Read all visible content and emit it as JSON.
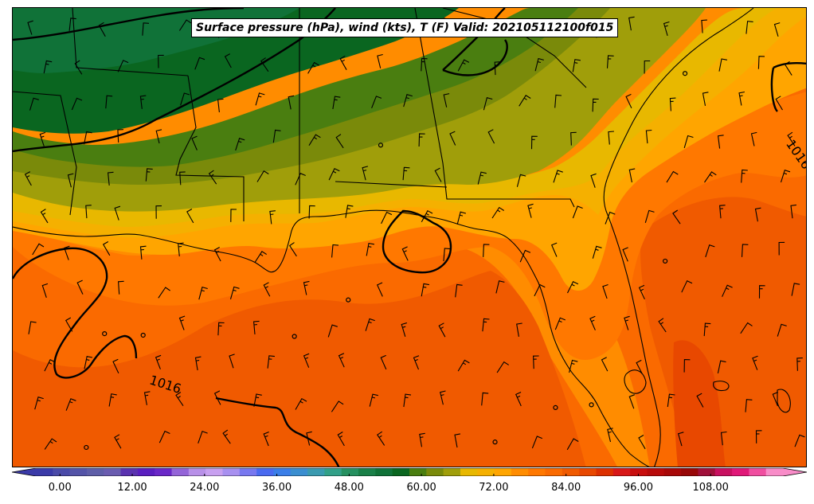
{
  "title": "Surface pressure (hPa), wind (kts), T (F) Valid: 202105112100f015",
  "isobar_labels": [
    "1016",
    "1016"
  ],
  "colorbar": {
    "min": -4,
    "max": 120,
    "extend": "both",
    "ticks": [
      "0.00",
      "12.00",
      "24.00",
      "36.00",
      "48.00",
      "60.00",
      "72.00",
      "84.00",
      "96.00",
      "108.00"
    ],
    "tick_values": [
      0,
      12,
      24,
      36,
      48,
      60,
      72,
      84,
      96,
      108
    ],
    "colors": [
      "#3a3aa8",
      "#4a4aa8",
      "#5454a8",
      "#5e5ea8",
      "#6a5cb0",
      "#5a32b0",
      "#5a1ec0",
      "#6a28c8",
      "#9464d8",
      "#b890e8",
      "#c8a0f0",
      "#a890f0",
      "#7878f0",
      "#4a6af0",
      "#3a7ee8",
      "#3a8ed0",
      "#3a9ab0",
      "#32a088",
      "#269060",
      "#1a8048",
      "#107238",
      "#0a6620",
      "#4a7e10",
      "#7a8a0a",
      "#a09e0a",
      "#e8b800",
      "#f5b000",
      "#ffa500",
      "#ff8c00",
      "#ff7800",
      "#fa6a00",
      "#f05a00",
      "#e84800",
      "#dc3000",
      "#d81818",
      "#c80e0e",
      "#b80a0a",
      "#a80808",
      "#980808",
      "#a0103a",
      "#c81060",
      "#e01878",
      "#f04ea0",
      "#f88cc8"
    ]
  },
  "temperature_colors": {
    "t58": "#107238",
    "t60": "#0a6620",
    "t62": "#4a7e10",
    "t64": "#7a8a0a",
    "t66": "#a09e0a",
    "t68": "#e8b800",
    "t70": "#f5b000",
    "t72": "#ffa500",
    "t74": "#ff8c00",
    "t76": "#ff7800",
    "t78": "#fa6a00",
    "t80": "#f05a00",
    "t82": "#e84800",
    "t84": "#dc3000"
  }
}
